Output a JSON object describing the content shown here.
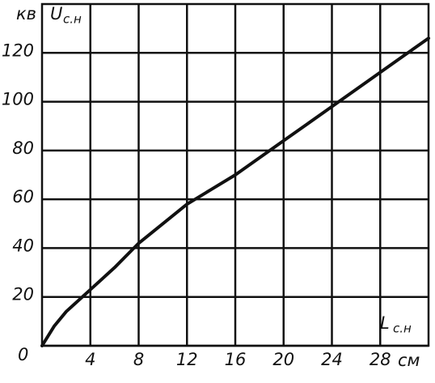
{
  "chart_data": {
    "type": "line",
    "x": [
      0,
      1,
      2,
      4,
      6,
      8,
      10,
      12,
      14,
      16,
      18,
      20,
      22,
      24,
      26,
      28,
      30,
      32
    ],
    "series": [
      {
        "color": "#111111",
        "values": [
          0,
          8,
          14,
          23,
          32,
          42,
          50,
          58,
          64,
          70,
          77,
          84,
          91,
          98,
          105,
          112,
          119,
          126
        ]
      }
    ],
    "xlim": [
      0,
      32
    ],
    "ylim": [
      0,
      140
    ],
    "xticks": [
      4,
      8,
      12,
      16,
      20,
      24,
      28
    ],
    "yticks": [
      0,
      20,
      40,
      60,
      80,
      100,
      120
    ],
    "grid": true,
    "y_label": "U",
    "y_label_sub": "с.н",
    "y_unit": "кв",
    "x_label": "L",
    "x_label_sub": "с.н",
    "x_unit": "см"
  }
}
